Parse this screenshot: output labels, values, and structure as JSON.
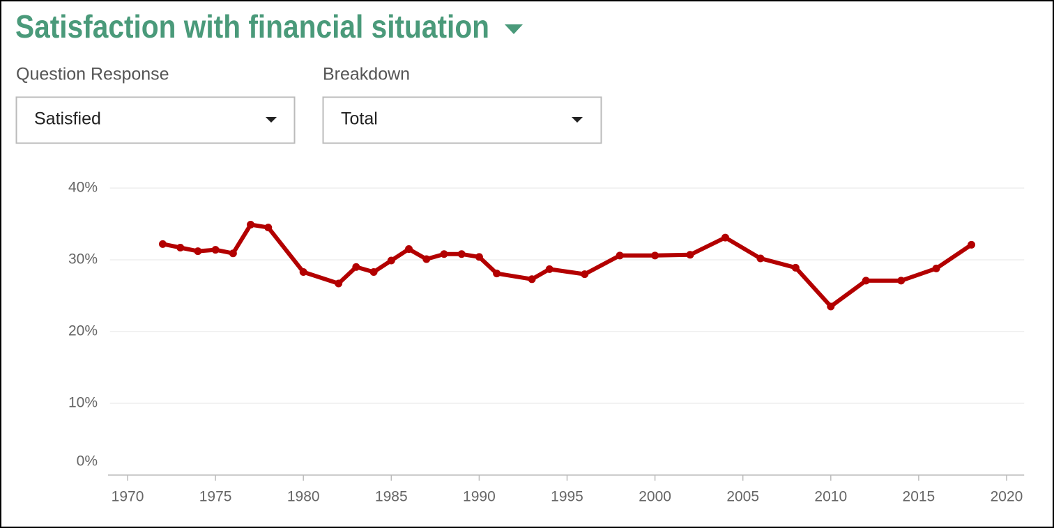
{
  "header": {
    "title": "Satisfaction with financial situation"
  },
  "controls": [
    {
      "label": "Question Response",
      "value": "Satisfied"
    },
    {
      "label": "Breakdown",
      "value": "Total"
    }
  ],
  "chart_data": {
    "type": "line",
    "x": [
      1972,
      1973,
      1974,
      1975,
      1976,
      1977,
      1978,
      1980,
      1982,
      1983,
      1984,
      1985,
      1986,
      1987,
      1988,
      1989,
      1990,
      1991,
      1993,
      1994,
      1996,
      1998,
      2000,
      2002,
      2004,
      2006,
      2008,
      2010,
      2012,
      2014,
      2016,
      2018
    ],
    "values": [
      32.2,
      31.7,
      31.2,
      31.4,
      30.9,
      34.9,
      34.5,
      28.3,
      26.7,
      29.0,
      28.3,
      29.9,
      31.5,
      30.1,
      30.8,
      30.8,
      30.4,
      28.1,
      27.3,
      28.7,
      28.0,
      30.6,
      30.6,
      30.7,
      33.1,
      30.2,
      28.9,
      23.5,
      27.1,
      27.1,
      28.8,
      32.1
    ],
    "color": "#b30000",
    "xlim": [
      1969,
      2021
    ],
    "xticks": [
      1970,
      1975,
      1980,
      1985,
      1990,
      1995,
      2000,
      2005,
      2010,
      2015,
      2020
    ],
    "ylim": [
      0,
      40
    ],
    "yticks": [
      {
        "value": 0,
        "label": "0%"
      },
      {
        "value": 10,
        "label": "10%"
      },
      {
        "value": 20,
        "label": "20%"
      },
      {
        "value": 30,
        "label": "30%"
      },
      {
        "value": 40,
        "label": "40%"
      }
    ],
    "grid": true
  }
}
